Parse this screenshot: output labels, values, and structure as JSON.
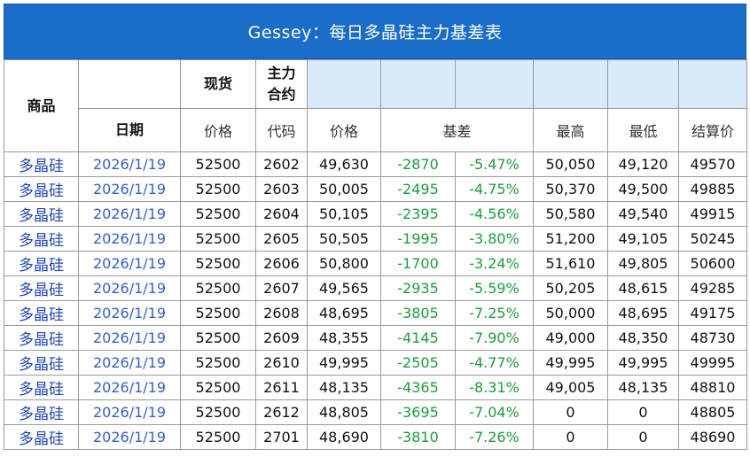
{
  "title": "Gessey：每日多晶硅主力基差表",
  "headers": {
    "product": "商品",
    "spot_top": "现货",
    "main_top": "主力合约",
    "date": "日期",
    "spot_price": "价格",
    "code": "代码",
    "price": "价格",
    "basis": "基差",
    "high": "最高",
    "low": "最低",
    "settle": "结算价"
  },
  "rows": [
    {
      "product": "多晶硅",
      "date": "2026/1/19",
      "spot": "52500",
      "code": "2602",
      "price": "49,630",
      "basis": "-2870",
      "basis_pct": "-5.47%",
      "high": "50,050",
      "low": "49,120",
      "settle": "49570"
    },
    {
      "product": "多晶硅",
      "date": "2026/1/19",
      "spot": "52500",
      "code": "2603",
      "price": "50,005",
      "basis": "-2495",
      "basis_pct": "-4.75%",
      "high": "50,370",
      "low": "49,500",
      "settle": "49885"
    },
    {
      "product": "多晶硅",
      "date": "2026/1/19",
      "spot": "52500",
      "code": "2604",
      "price": "50,105",
      "basis": "-2395",
      "basis_pct": "-4.56%",
      "high": "50,580",
      "low": "49,540",
      "settle": "49915"
    },
    {
      "product": "多晶硅",
      "date": "2026/1/19",
      "spot": "52500",
      "code": "2605",
      "price": "50,505",
      "basis": "-1995",
      "basis_pct": "-3.80%",
      "high": "51,200",
      "low": "49,105",
      "settle": "50245"
    },
    {
      "product": "多晶硅",
      "date": "2026/1/19",
      "spot": "52500",
      "code": "2606",
      "price": "50,800",
      "basis": "-1700",
      "basis_pct": "-3.24%",
      "high": "51,610",
      "low": "49,805",
      "settle": "50600"
    },
    {
      "product": "多晶硅",
      "date": "2026/1/19",
      "spot": "52500",
      "code": "2607",
      "price": "49,565",
      "basis": "-2935",
      "basis_pct": "-5.59%",
      "high": "50,205",
      "low": "48,615",
      "settle": "49285"
    },
    {
      "product": "多晶硅",
      "date": "2026/1/19",
      "spot": "52500",
      "code": "2608",
      "price": "48,695",
      "basis": "-3805",
      "basis_pct": "-7.25%",
      "high": "50,000",
      "low": "48,695",
      "settle": "49175"
    },
    {
      "product": "多晶硅",
      "date": "2026/1/19",
      "spot": "52500",
      "code": "2609",
      "price": "48,355",
      "basis": "-4145",
      "basis_pct": "-7.90%",
      "high": "49,000",
      "low": "48,350",
      "settle": "48730"
    },
    {
      "product": "多晶硅",
      "date": "2026/1/19",
      "spot": "52500",
      "code": "2610",
      "price": "49,995",
      "basis": "-2505",
      "basis_pct": "-4.77%",
      "high": "49,995",
      "low": "49,995",
      "settle": "49995"
    },
    {
      "product": "多晶硅",
      "date": "2026/1/19",
      "spot": "52500",
      "code": "2611",
      "price": "48,135",
      "basis": "-4365",
      "basis_pct": "-8.31%",
      "high": "49,005",
      "low": "48,135",
      "settle": "48810"
    },
    {
      "product": "多晶硅",
      "date": "2026/1/19",
      "spot": "52500",
      "code": "2612",
      "price": "48,805",
      "basis": "-3695",
      "basis_pct": "-7.04%",
      "high": "0",
      "low": "0",
      "settle": "48805"
    },
    {
      "product": "多晶硅",
      "date": "2026/1/19",
      "spot": "52500",
      "code": "2701",
      "price": "48,690",
      "basis": "-3810",
      "basis_pct": "-7.26%",
      "high": "0",
      "low": "0",
      "settle": "48690"
    }
  ],
  "colors": {
    "title_bg": "#1a6dc8",
    "header_fill": "#d9ebfa",
    "basis_text": "#1e9c3e",
    "product_text": "#1f46b8"
  }
}
